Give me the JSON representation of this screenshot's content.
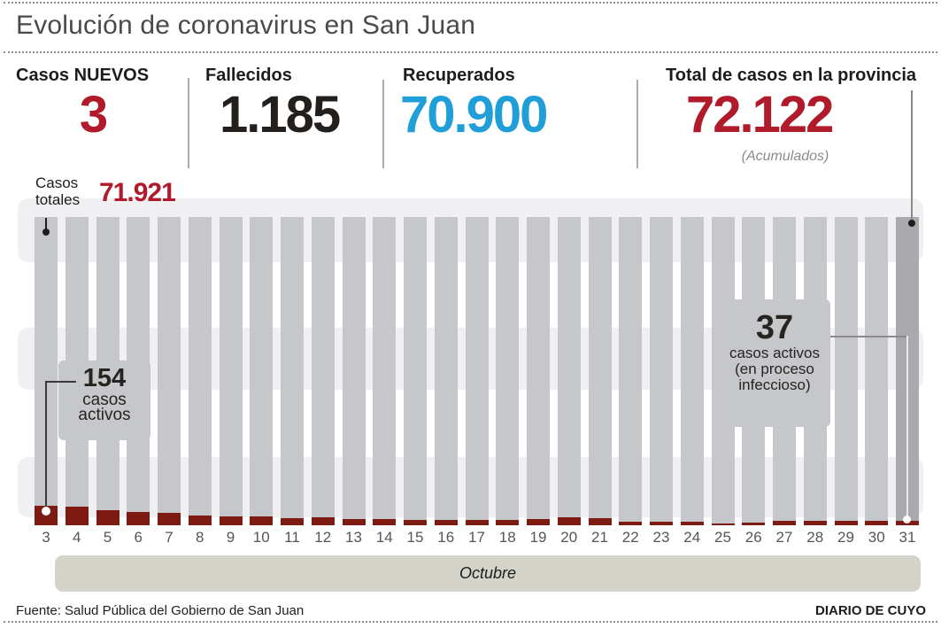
{
  "title": "Evolución de coronavirus en San Juan",
  "colors": {
    "accent_red": "#b01a2b",
    "accent_blue": "#1f9ed8",
    "bar_gray": "#c6c7cb",
    "bar_dark_gray": "#a9a9ae",
    "bar_red": "#7d1a11",
    "band_light": "#f0f0f3",
    "month_band": "#d5d4ca"
  },
  "stats": [
    {
      "label": "Casos NUEVOS",
      "value": "3",
      "color": "red"
    },
    {
      "label": "Fallecidos",
      "value": "1.185",
      "color": "black"
    },
    {
      "label": "Recuperados",
      "value": "70.900",
      "color": "blue"
    },
    {
      "label": "Total de casos en la provincia",
      "value": "72.122",
      "color": "red",
      "note": "(Acumulados)"
    }
  ],
  "chart_data": {
    "type": "bar",
    "title": "",
    "xlabel": "Octubre",
    "month_label": "Octubre",
    "categories": [
      3,
      4,
      5,
      6,
      7,
      8,
      9,
      10,
      11,
      12,
      13,
      14,
      15,
      16,
      17,
      18,
      19,
      20,
      21,
      22,
      23,
      24,
      25,
      26,
      27,
      28,
      29,
      30,
      31
    ],
    "series": [
      {
        "name": "casos totales",
        "note": "all bars nearly equal height; only endpoints labeled",
        "labeled_points": {
          "day_3": 71921,
          "day_31": 72122
        }
      },
      {
        "name": "casos activos (en proceso infeccioso)",
        "note": "only day 3 (154) and day 31 (37) labeled; other values estimated from bar heights",
        "values": [
          154,
          145,
          120,
          107,
          98,
          80,
          70,
          72,
          58,
          62,
          52,
          50,
          45,
          45,
          43,
          41,
          48,
          60,
          58,
          31,
          29,
          29,
          16,
          22,
          34,
          38,
          36,
          38,
          37
        ]
      }
    ],
    "legend_position": "none",
    "grid": false,
    "annotations": {
      "casos_totales": {
        "label_lines": [
          "Casos",
          "totales"
        ],
        "value": "71.921"
      },
      "active_start": {
        "value": "154",
        "lines": [
          "casos",
          "activos"
        ]
      },
      "active_end": {
        "value": "37",
        "lines": [
          "casos activos",
          "(en proceso",
          "infeccioso)"
        ]
      }
    }
  },
  "footer": {
    "source": "Fuente: Salud Pública del Gobierno de San Juan",
    "credit": "DIARIO DE CUYO"
  }
}
